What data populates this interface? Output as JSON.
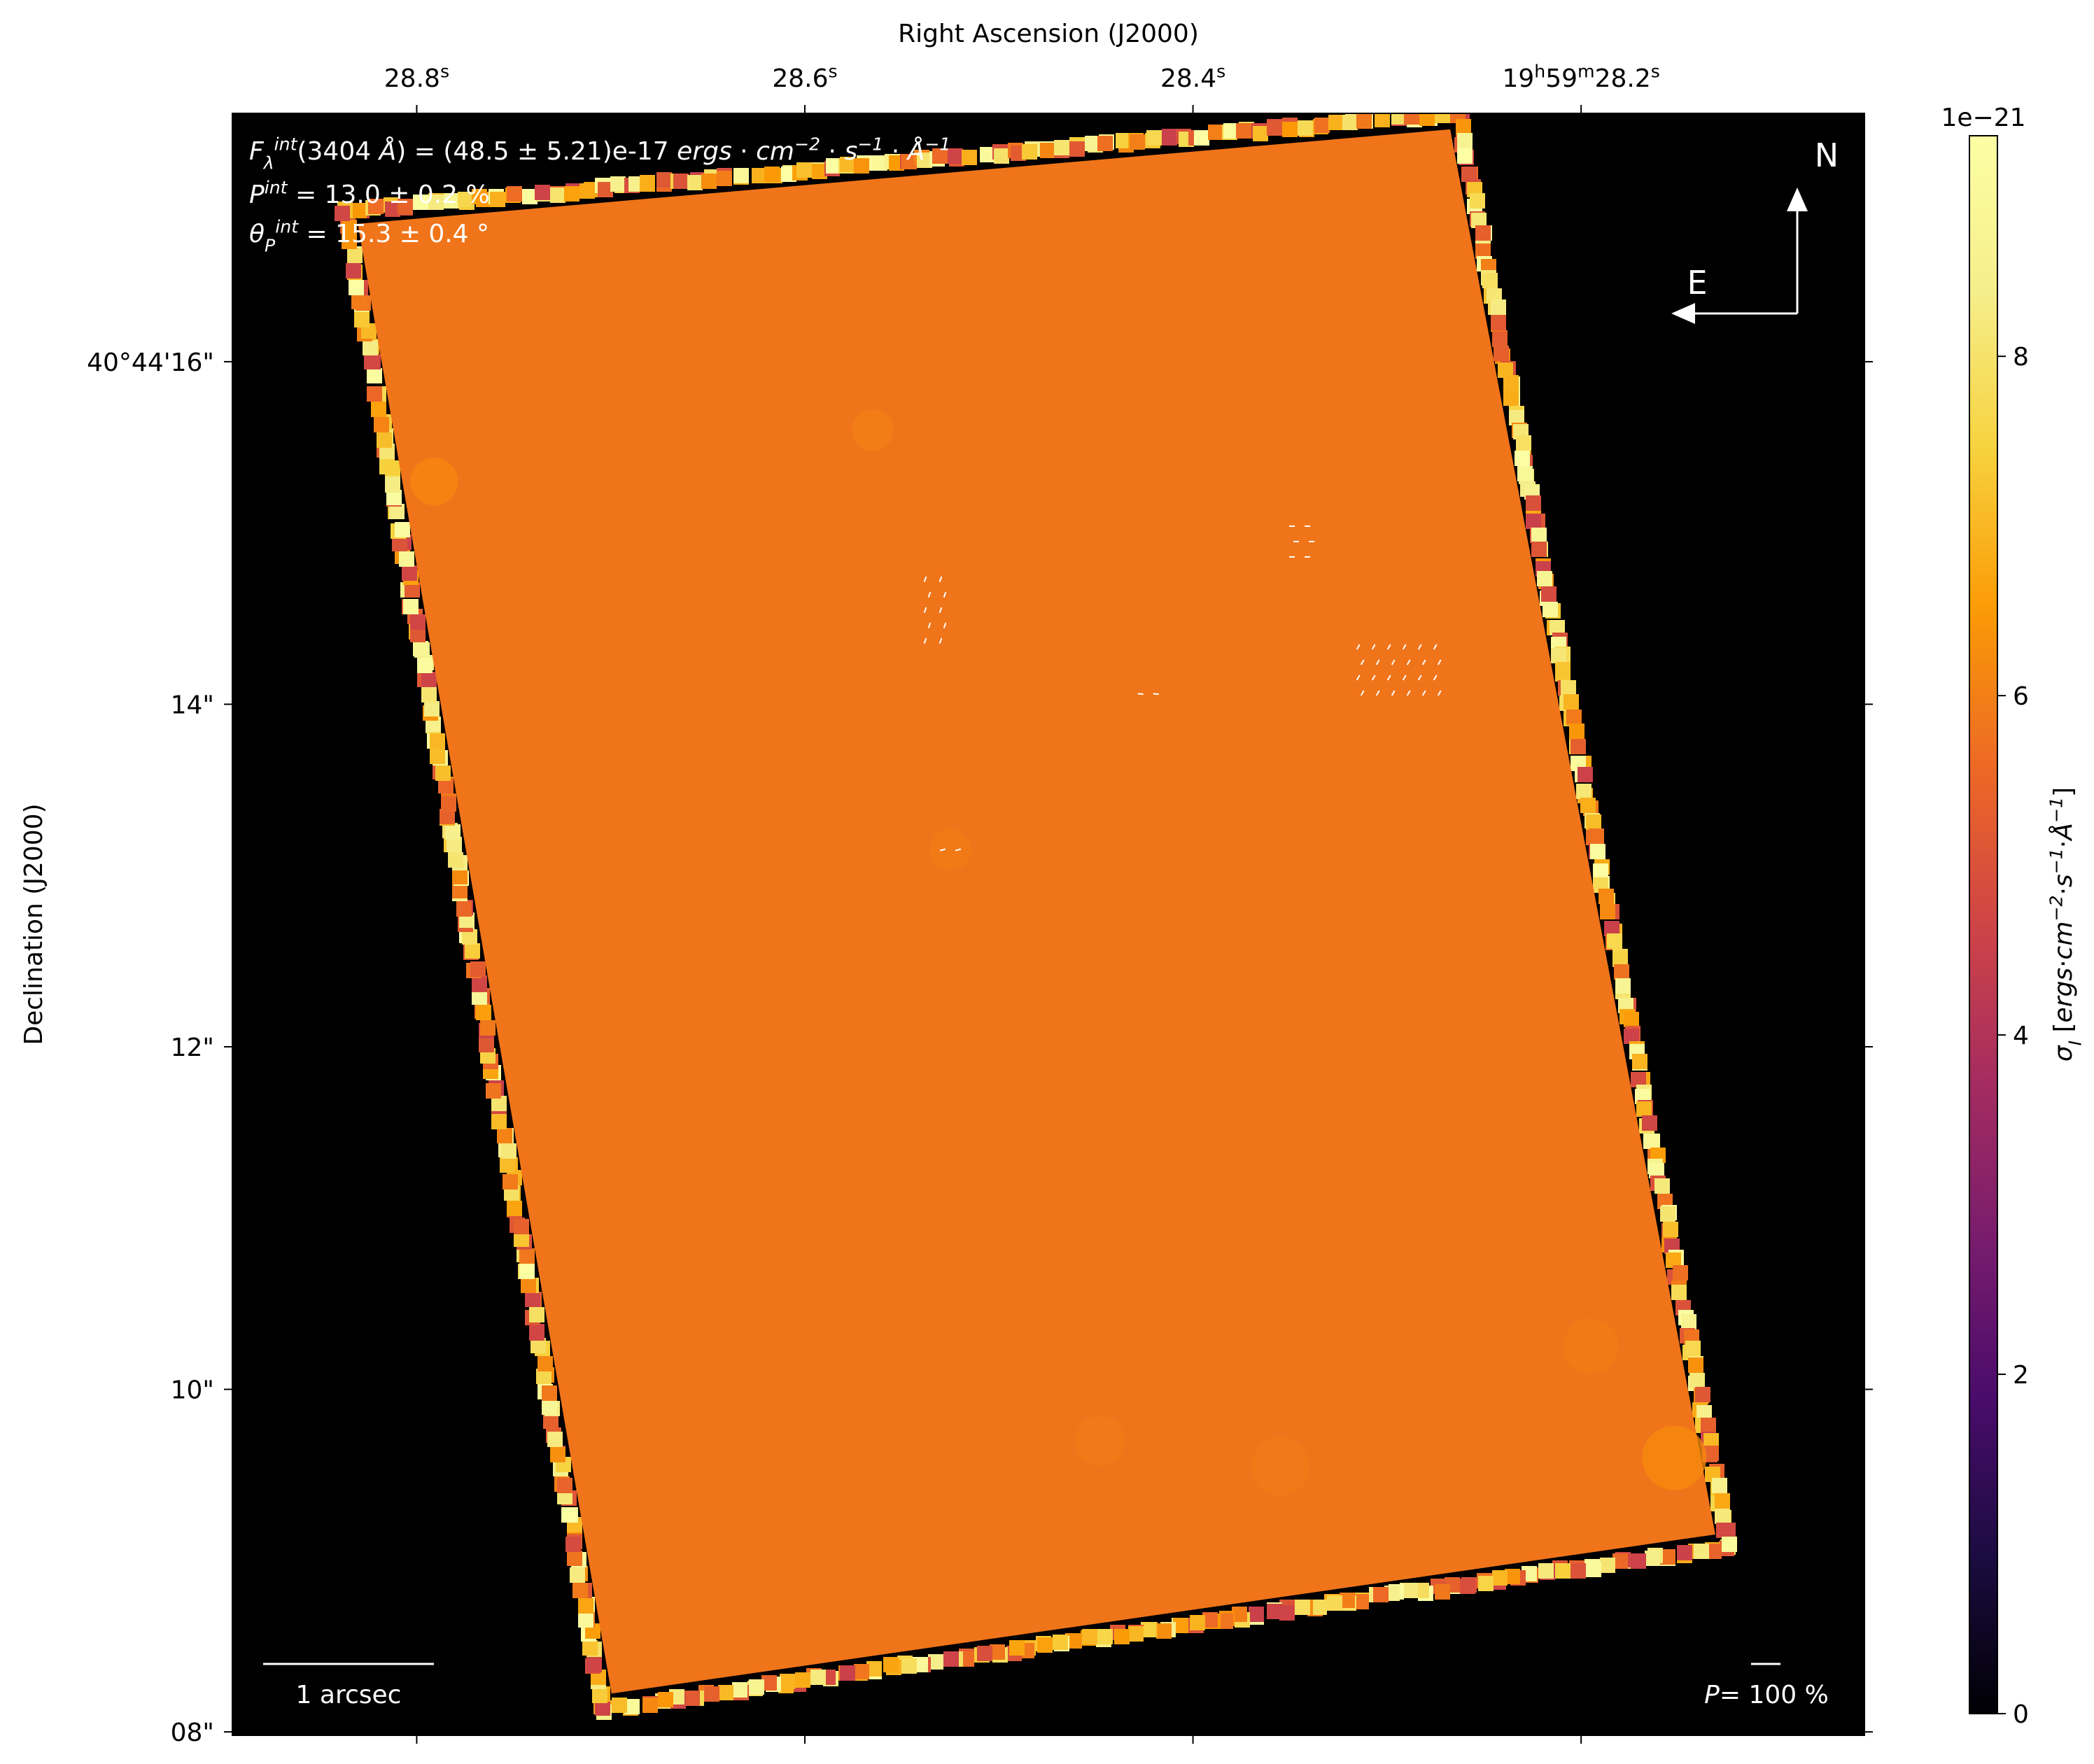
{
  "chart_data": {
    "type": "heatmap",
    "title": "",
    "top_axis": {
      "label": "Right Ascension (J2000)",
      "ticks": [
        {
          "ra_s": 28.8,
          "text": "28.8",
          "unit_sup": "s"
        },
        {
          "ra_s": 28.6,
          "text": "28.6",
          "unit_sup": "s"
        },
        {
          "ra_s": 28.4,
          "text": "28.4",
          "unit_sup": "s"
        },
        {
          "ra_s": 28.2,
          "text": "19h59m28.2s",
          "parts": [
            {
              "t": "19",
              "sup": false
            },
            {
              "t": "h",
              "sup": true
            },
            {
              "t": "59",
              "sup": false
            },
            {
              "t": "m",
              "sup": true
            },
            {
              "t": "28.2",
              "sup": false
            },
            {
              "t": "s",
              "sup": true
            }
          ]
        }
      ]
    },
    "left_axis": {
      "label": "Declination (J2000)",
      "ticks": [
        {
          "dec_arcsec": 16,
          "text": "40°44'16\""
        },
        {
          "dec_arcsec": 14,
          "text": "14\""
        },
        {
          "dec_arcsec": 12,
          "text": "12\""
        },
        {
          "dec_arcsec": 10,
          "text": "10\""
        },
        {
          "dec_arcsec": 8,
          "text": "08\""
        }
      ]
    },
    "ra_range_s": [
      28.895,
      28.054
    ],
    "dec_range_arcsec": [
      7.98,
      17.45
    ],
    "colorbar": {
      "label": "σ_I [ergs·cm⁻²·s⁻¹·Å⁻¹]",
      "label_parts": [
        {
          "t": "σ",
          "it": true
        },
        {
          "t": "I",
          "it": true,
          "sub": true
        },
        {
          "t": " [",
          "it": false
        },
        {
          "t": "ergs",
          "it": true
        },
        {
          "t": "·",
          "it": false
        },
        {
          "t": "cm",
          "it": true
        },
        {
          "t": "−2",
          "it": true,
          "sup": true
        },
        {
          "t": "·",
          "it": false
        },
        {
          "t": "s",
          "it": true
        },
        {
          "t": "−1",
          "it": true,
          "sup": true
        },
        {
          "t": "·",
          "it": false
        },
        {
          "t": "Å",
          "it": true
        },
        {
          "t": "−1",
          "it": true,
          "sup": true
        },
        {
          "t": "]",
          "it": false
        }
      ],
      "exponent": "1e−21",
      "range": [
        0,
        9.3
      ],
      "ticks": [
        0,
        2,
        4,
        6,
        8
      ],
      "colormap": "inferno"
    },
    "field_value": 6.7,
    "edge_value_range": [
      4.5,
      9.3
    ],
    "annotations": {
      "flux": "F_λ^int(3404 Å) = (48.5 ± 5.21)e-17 ergs·cm⁻²·s⁻¹·Å⁻¹",
      "flux_parts": [
        {
          "t": "F",
          "it": true
        },
        {
          "t": "λ",
          "it": true,
          "sub": true
        },
        {
          "t": "int",
          "it": true,
          "sup": true
        },
        {
          "t": "(3404 ",
          "it": false
        },
        {
          "t": "Å",
          "it": true
        },
        {
          "t": ") = (48.5 ± 5.21)e-17 ",
          "it": false
        },
        {
          "t": "ergs",
          "it": true
        },
        {
          "t": " · ",
          "it": false
        },
        {
          "t": "cm",
          "it": true
        },
        {
          "t": "−2",
          "it": true,
          "sup": true
        },
        {
          "t": " · ",
          "it": false
        },
        {
          "t": "s",
          "it": true
        },
        {
          "t": "−1",
          "it": true,
          "sup": true
        },
        {
          "t": " · ",
          "it": false
        },
        {
          "t": "Å",
          "it": true
        },
        {
          "t": "−1",
          "it": true,
          "sup": true
        }
      ],
      "polarization": "P^int = 13.0 ± 0.2 %",
      "polarization_parts": [
        {
          "t": "P",
          "it": true
        },
        {
          "t": "int",
          "it": true,
          "sup": true
        },
        {
          "t": " = 13.0 ± 0.2 %",
          "it": false
        }
      ],
      "angle": "θ_P^int = 15.3 ± 0.4 °",
      "angle_parts": [
        {
          "t": "θ",
          "it": true
        },
        {
          "t": "P",
          "it": true,
          "sub": true
        },
        {
          "t": "int",
          "it": true,
          "sup": true
        },
        {
          "t": " = 15.3 ± 0.4 °",
          "it": false
        }
      ],
      "compass_north": "N",
      "compass_east": "E",
      "scalebar": "1 arcsec",
      "vector_scale": "P= 100 %",
      "vector_scale_parts": [
        {
          "t": "P",
          "it": true
        },
        {
          "t": "= 100 %",
          "it": false
        }
      ]
    },
    "polarization_vector_groups": [
      {
        "ra_s": 28.534,
        "dec_arcsec": 14.55,
        "cols": 2,
        "rows": 5,
        "angle_deg": 20
      },
      {
        "ra_s": 28.525,
        "dec_arcsec": 13.15,
        "cols": 2,
        "rows": 1,
        "angle_deg": 75
      },
      {
        "ra_s": 28.423,
        "dec_arcsec": 14.06,
        "cols": 2,
        "rows": 1,
        "angle_deg": 95
      },
      {
        "ra_s": 28.345,
        "dec_arcsec": 14.95,
        "cols": 2,
        "rows": 3,
        "angle_deg": 90
      },
      {
        "ra_s": 28.295,
        "dec_arcsec": 14.2,
        "cols": 6,
        "rows": 4,
        "angle_deg": 30
      }
    ],
    "colors": {
      "background": "#000000",
      "field": "#f07419",
      "text_on_image": "#ffffff"
    }
  }
}
